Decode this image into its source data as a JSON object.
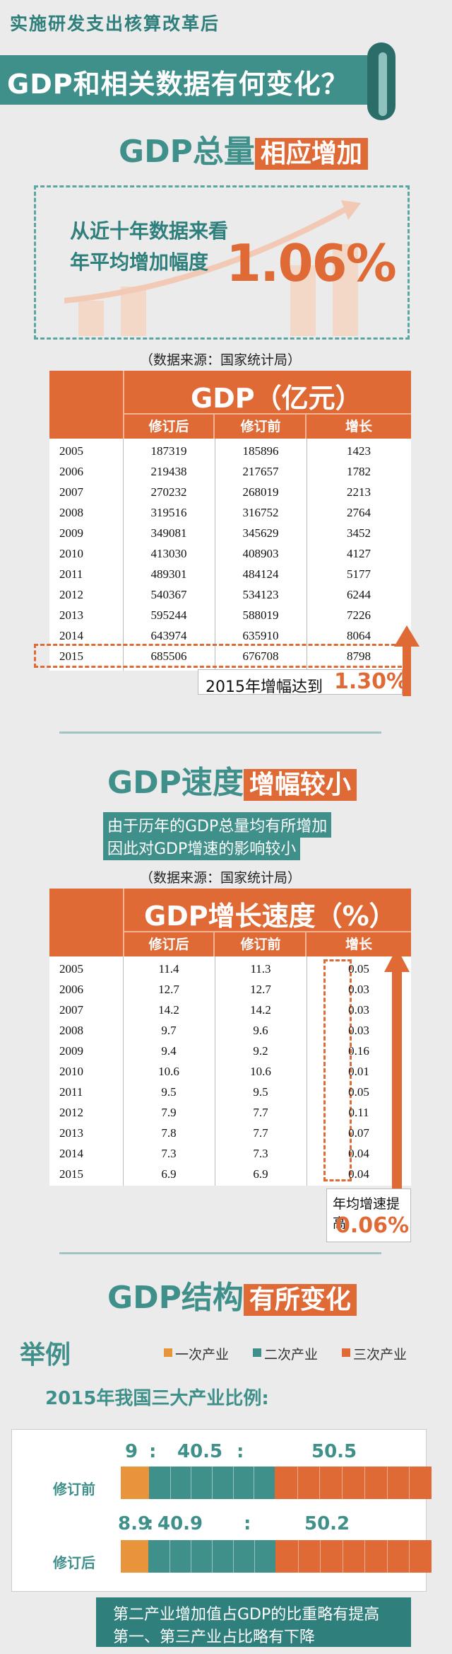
{
  "header": {
    "kicker": "实施研发支出核算改革后",
    "title": "GDP和相关数据有何变化？"
  },
  "section1": {
    "title_a": "GDP总量",
    "title_b": "相应增加",
    "callout_line1": "从近十年数据来看",
    "callout_line2": "年平均增加幅度",
    "callout_value": "1.06%"
  },
  "source_label": "（数据来源：国家统计局）",
  "table1": {
    "title": "GDP（亿元）",
    "columns": [
      "修订后",
      "修订前",
      "增长"
    ],
    "rows": [
      {
        "year": "2005",
        "after": "187319",
        "before": "185896",
        "diff": "1423"
      },
      {
        "year": "2006",
        "after": "219438",
        "before": "217657",
        "diff": "1782"
      },
      {
        "year": "2007",
        "after": "270232",
        "before": "268019",
        "diff": "2213"
      },
      {
        "year": "2008",
        "after": "319516",
        "before": "316752",
        "diff": "2764"
      },
      {
        "year": "2009",
        "after": "349081",
        "before": "345629",
        "diff": "3452"
      },
      {
        "year": "2010",
        "after": "413030",
        "before": "408903",
        "diff": "4127"
      },
      {
        "year": "2011",
        "after": "489301",
        "before": "484124",
        "diff": "5177"
      },
      {
        "year": "2012",
        "after": "540367",
        "before": "534123",
        "diff": "6244"
      },
      {
        "year": "2013",
        "after": "595244",
        "before": "588019",
        "diff": "7226"
      },
      {
        "year": "2014",
        "after": "643974",
        "before": "635910",
        "diff": "8064"
      },
      {
        "year": "2015",
        "after": "685506",
        "before": "676708",
        "diff": "8798"
      }
    ],
    "note_text": "2015年增幅达到",
    "note_value": "1.30%"
  },
  "section2": {
    "title_a": "GDP速度",
    "title_b": "增幅较小",
    "sub1": "由于历年的GDP总量均有所增加",
    "sub2": "因此对GDP增速的影响较小"
  },
  "table2": {
    "title": "GDP增长速度（%）",
    "columns": [
      "修订后",
      "修订前",
      "增长"
    ],
    "rows": [
      {
        "year": "2005",
        "after": "11.4",
        "before": "11.3",
        "diff": "0.05"
      },
      {
        "year": "2006",
        "after": "12.7",
        "before": "12.7",
        "diff": "0.03"
      },
      {
        "year": "2007",
        "after": "14.2",
        "before": "14.2",
        "diff": "0.03"
      },
      {
        "year": "2008",
        "after": "9.7",
        "before": "9.6",
        "diff": "0.03"
      },
      {
        "year": "2009",
        "after": "9.4",
        "before": "9.2",
        "diff": "0.16"
      },
      {
        "year": "2010",
        "after": "10.6",
        "before": "10.6",
        "diff": "0.01"
      },
      {
        "year": "2011",
        "after": "9.5",
        "before": "9.5",
        "diff": "0.05"
      },
      {
        "year": "2012",
        "after": "7.9",
        "before": "7.7",
        "diff": "0.11"
      },
      {
        "year": "2013",
        "after": "7.8",
        "before": "7.7",
        "diff": "0.07"
      },
      {
        "year": "2014",
        "after": "7.3",
        "before": "7.3",
        "diff": "0.04"
      },
      {
        "year": "2015",
        "after": "6.9",
        "before": "6.9",
        "diff": "0.04"
      }
    ],
    "note_text": "年均增速提高",
    "note_value": "0.06%"
  },
  "section3": {
    "title_a": "GDP结构",
    "title_b": "有所变化",
    "example": "举例",
    "legend": [
      "一次产业",
      "二次产业",
      "三次产业"
    ],
    "subtitle": "2015年我国三大产业比例:",
    "before_label": "修订前",
    "after_label": "修订后",
    "before_nums": [
      "9",
      "40.5",
      "50.5"
    ],
    "after_nums": [
      "8.9",
      "40.9",
      "50.2"
    ],
    "sep": ":",
    "footer1": "第二产业增加值占GDP的比重略有提高",
    "footer2": "第一、第三产业占比略有下降"
  },
  "colors": {
    "teal": "#3f8f8a",
    "orange": "#e06a35",
    "amber": "#e8943b"
  }
}
